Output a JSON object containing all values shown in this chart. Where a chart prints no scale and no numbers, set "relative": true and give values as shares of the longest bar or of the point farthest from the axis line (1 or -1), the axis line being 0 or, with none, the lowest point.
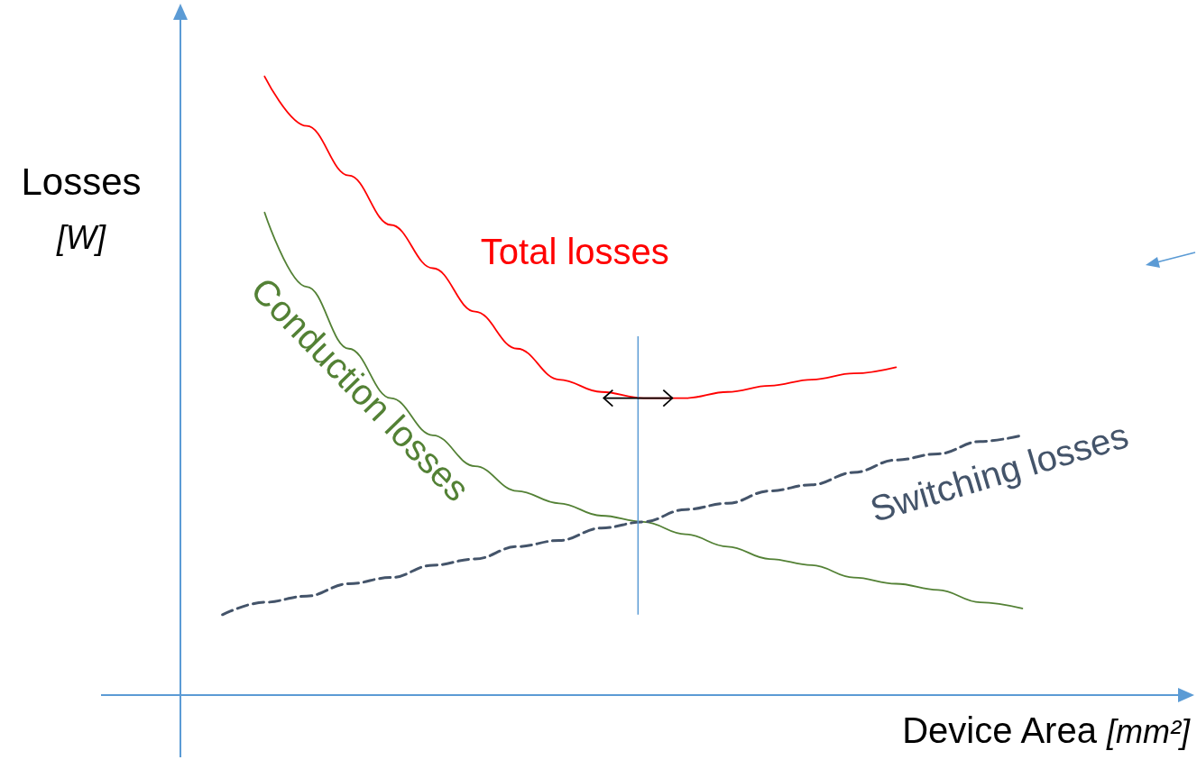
{
  "chart_data": {
    "type": "line",
    "relative": true,
    "xlabel": "Device Area [mm²]",
    "ylabel": "Losses [W]",
    "grid": false,
    "legend": false,
    "marker": "none",
    "line_style": "solid",
    "categories": [
      null,
      null,
      null,
      null,
      null,
      null,
      null,
      null,
      null,
      null,
      null,
      null,
      null,
      null,
      null,
      null,
      null,
      null,
      null,
      null,
      null,
      null,
      null,
      null,
      null
    ],
    "series": [
      {
        "name": "Total losses",
        "color": "#ff0000",
        "values": [
          null,
          null,
          1.0,
          0.92,
          0.84,
          0.76,
          0.69,
          0.62,
          0.56,
          0.51,
          0.49,
          0.48,
          0.48,
          0.49,
          0.5,
          0.51,
          0.52,
          0.53,
          null,
          null,
          null,
          null,
          null,
          null,
          null
        ]
      },
      {
        "name": "Conduction losses",
        "color": "#538135",
        "values": [
          null,
          null,
          0.78,
          0.66,
          0.56,
          0.48,
          0.42,
          0.37,
          0.33,
          0.31,
          0.29,
          0.28,
          0.26,
          0.24,
          0.22,
          0.21,
          0.19,
          0.18,
          0.17,
          0.15,
          0.14,
          null,
          null,
          null,
          null
        ]
      },
      {
        "name": "Switching losses",
        "color": "#44546a",
        "line_style": "dashed",
        "values": [
          null,
          0.13,
          0.15,
          0.16,
          0.18,
          0.19,
          0.21,
          0.22,
          0.24,
          0.25,
          0.27,
          0.28,
          0.3,
          0.31,
          0.33,
          0.34,
          0.36,
          0.38,
          0.39,
          0.41,
          0.42,
          null,
          null,
          null,
          null
        ]
      }
    ]
  }
}
